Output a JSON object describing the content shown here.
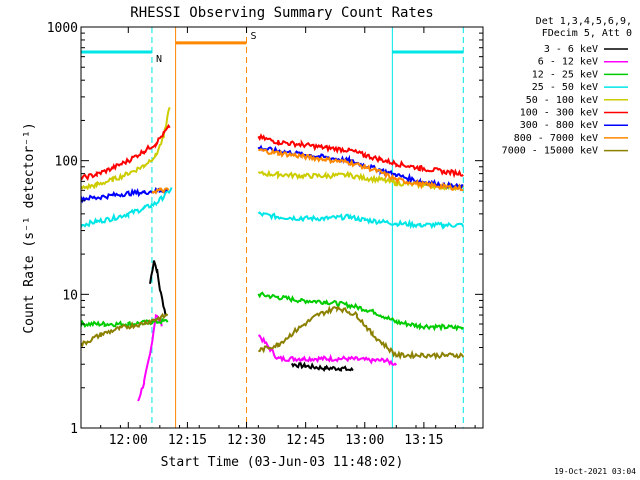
{
  "chart_data": {
    "type": "line",
    "title": "RHESSI Observing Summary Count Rates",
    "xlabel": "Start Time (03-Jun-03 11:48:02)",
    "ylabel": "Count Rate (s⁻¹ detector⁻¹)",
    "yscale": "log",
    "ylim": [
      1,
      1000
    ],
    "xlim_minutes": [
      0,
      102
    ],
    "x_start": "11:48:02",
    "x_ticks": [
      {
        "label": "12:00",
        "min": 12
      },
      {
        "label": "12:15",
        "min": 27
      },
      {
        "label": "12:30",
        "min": 42
      },
      {
        "label": "12:45",
        "min": 57
      },
      {
        "label": "13:00",
        "min": 72
      },
      {
        "label": "13:15",
        "min": 87
      }
    ],
    "y_ticks": [
      {
        "label": "1",
        "value": 1
      },
      {
        "label": "10",
        "value": 10
      },
      {
        "label": "100",
        "value": 100
      },
      {
        "label": "1000",
        "value": 1000
      }
    ],
    "legend_header": [
      "Det 1,3,4,5,6,9,",
      "FDecim 5, Att 0"
    ],
    "legend_position": "top-right",
    "series": [
      {
        "name": "3 - 6 keV",
        "color": "#000000",
        "points": [
          [
            17.5,
            12
          ],
          [
            18.5,
            18
          ],
          [
            19.3,
            15
          ],
          [
            20,
            11
          ],
          [
            21.5,
            7
          ]
        ],
        "points2": [
          [
            53.5,
            3.0
          ],
          [
            57,
            2.9
          ],
          [
            62,
            2.8
          ],
          [
            66,
            2.8
          ],
          [
            69,
            2.7
          ]
        ]
      },
      {
        "name": "6 - 12 keV",
        "color": "#ff00ff",
        "points": [
          [
            14.5,
            1.6
          ],
          [
            16,
            2.2
          ],
          [
            17.5,
            3.5
          ],
          [
            19,
            7
          ],
          [
            20.5,
            6
          ]
        ],
        "points2": [
          [
            45,
            5
          ],
          [
            50,
            3.3
          ],
          [
            56,
            3.3
          ],
          [
            62,
            3.3
          ],
          [
            68,
            3.3
          ],
          [
            74,
            3.2
          ],
          [
            77,
            3.2
          ],
          [
            80,
            3.0
          ]
        ]
      },
      {
        "name": "12 - 25 keV",
        "color": "#00cc00",
        "points": [
          [
            0,
            6
          ],
          [
            6,
            6
          ],
          [
            12,
            6
          ],
          [
            18,
            6.2
          ],
          [
            22,
            6.3
          ]
        ],
        "points2": [
          [
            45,
            10
          ],
          [
            50,
            9.5
          ],
          [
            56,
            9
          ],
          [
            62,
            8.8
          ],
          [
            68,
            8.3
          ],
          [
            74,
            7.5
          ],
          [
            80,
            6.2
          ],
          [
            86,
            5.8
          ],
          [
            92,
            5.7
          ],
          [
            97,
            5.6
          ]
        ]
      },
      {
        "name": "25 - 50 keV",
        "color": "#00e6e6",
        "points": [
          [
            0,
            33
          ],
          [
            4,
            35
          ],
          [
            8,
            37
          ],
          [
            12,
            40
          ],
          [
            16,
            44
          ],
          [
            19,
            48
          ],
          [
            21,
            54
          ],
          [
            23,
            62
          ]
        ],
        "points2": [
          [
            45,
            40
          ],
          [
            50,
            38
          ],
          [
            56,
            37
          ],
          [
            62,
            37
          ],
          [
            68,
            38
          ],
          [
            72,
            36
          ],
          [
            76,
            35
          ],
          [
            80,
            34
          ],
          [
            86,
            33
          ],
          [
            92,
            33
          ],
          [
            97,
            33
          ]
        ]
      },
      {
        "name": "50 - 100 keV",
        "color": "#cccc00",
        "points": [
          [
            0,
            62
          ],
          [
            4,
            66
          ],
          [
            8,
            72
          ],
          [
            12,
            80
          ],
          [
            16,
            92
          ],
          [
            19,
            110
          ],
          [
            21,
            150
          ],
          [
            22.5,
            260
          ]
        ],
        "points2": [
          [
            45,
            80
          ],
          [
            50,
            79
          ],
          [
            56,
            77
          ],
          [
            62,
            77
          ],
          [
            68,
            78
          ],
          [
            72,
            74
          ],
          [
            76,
            72
          ],
          [
            80,
            68
          ],
          [
            86,
            66
          ],
          [
            92,
            64
          ],
          [
            97,
            63
          ]
        ]
      },
      {
        "name": "100 - 300 keV",
        "color": "#ff0000",
        "points": [
          [
            0,
            74
          ],
          [
            4,
            79
          ],
          [
            8,
            88
          ],
          [
            12,
            100
          ],
          [
            16,
            118
          ],
          [
            19,
            135
          ],
          [
            21,
            160
          ],
          [
            22.5,
            180
          ]
        ],
        "points2": [
          [
            45,
            150
          ],
          [
            50,
            138
          ],
          [
            56,
            132
          ],
          [
            62,
            125
          ],
          [
            68,
            120
          ],
          [
            72,
            110
          ],
          [
            76,
            102
          ],
          [
            80,
            95
          ],
          [
            86,
            88
          ],
          [
            92,
            83
          ],
          [
            97,
            80
          ]
        ]
      },
      {
        "name": "300 - 800 keV",
        "color": "#0000ff",
        "points": [
          [
            0,
            52
          ],
          [
            4,
            53
          ],
          [
            8,
            55
          ],
          [
            12,
            57
          ],
          [
            16,
            58
          ],
          [
            20,
            60
          ],
          [
            22,
            60
          ]
        ],
        "points2": [
          [
            45,
            125
          ],
          [
            50,
            118
          ],
          [
            56,
            112
          ],
          [
            62,
            106
          ],
          [
            68,
            100
          ],
          [
            72,
            92
          ],
          [
            76,
            85
          ],
          [
            80,
            78
          ],
          [
            86,
            70
          ],
          [
            92,
            66
          ],
          [
            97,
            63
          ]
        ]
      },
      {
        "name": "800 - 7000 keV",
        "color": "#ff8800",
        "points": [
          [
            18,
            59
          ],
          [
            20,
            60
          ],
          [
            22.2,
            60
          ]
        ],
        "points2": [
          [
            45,
            120
          ],
          [
            50,
            114
          ],
          [
            56,
            108
          ],
          [
            62,
            102
          ],
          [
            68,
            97
          ],
          [
            72,
            90
          ],
          [
            76,
            82
          ],
          [
            80,
            72
          ],
          [
            86,
            67
          ],
          [
            92,
            64
          ],
          [
            97,
            62
          ]
        ]
      },
      {
        "name": "7000 - 15000 keV",
        "color": "#8b8000",
        "points": [
          [
            0,
            4.2
          ],
          [
            5,
            5
          ],
          [
            10,
            5.6
          ],
          [
            15,
            6
          ],
          [
            19,
            6.5
          ],
          [
            22,
            7
          ]
        ],
        "points2": [
          [
            45,
            3.8
          ],
          [
            50,
            4.2
          ],
          [
            55,
            5.5
          ],
          [
            60,
            7
          ],
          [
            65,
            8
          ],
          [
            70,
            7
          ],
          [
            74,
            5
          ],
          [
            80,
            3.5
          ],
          [
            86,
            3.5
          ],
          [
            92,
            3.5
          ],
          [
            97,
            3.5
          ]
        ]
      }
    ],
    "overlays": [
      {
        "color": "#00e6e6",
        "label": "N",
        "segments": [
          [
            0,
            650,
            18,
            650
          ],
          [
            79,
            650,
            97,
            650
          ]
        ],
        "vlines": [
          0,
          18,
          79,
          97
        ],
        "dashed": [
          18,
          97
        ]
      },
      {
        "color": "#ff8800",
        "label": "S",
        "segments": [
          [
            24,
            760,
            42,
            760
          ]
        ],
        "vlines": [
          24,
          42
        ],
        "dashed": [
          42
        ]
      }
    ],
    "footer_timestamp": "19-Oct-2021 03:04"
  }
}
